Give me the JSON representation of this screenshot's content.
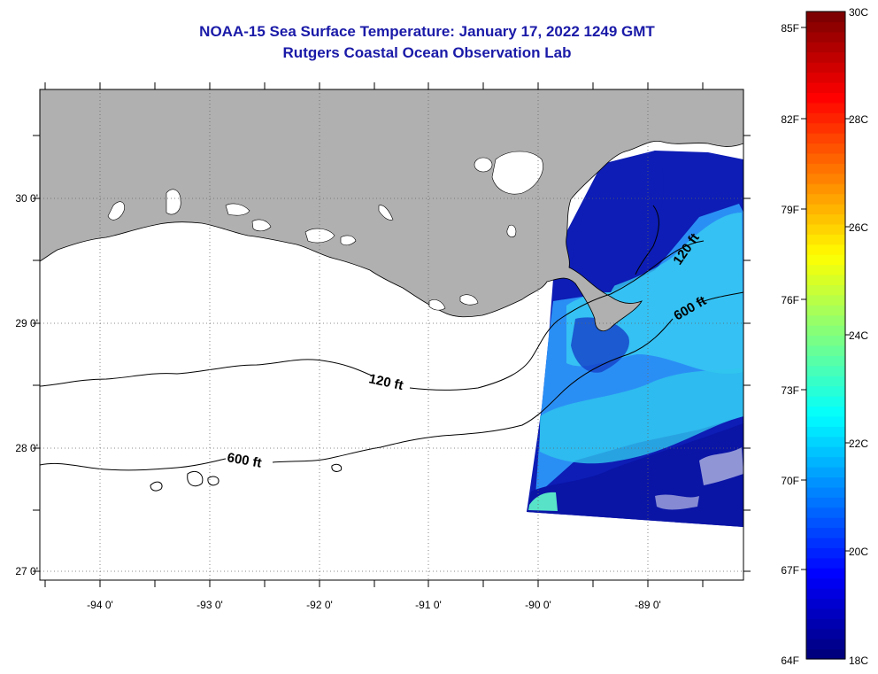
{
  "title": {
    "line1": "NOAA-15 Sea Surface Temperature:  January 17, 2022 1249 GMT",
    "line2": "Rutgers Coastal Ocean Observation Lab"
  },
  "map": {
    "lat_labels": [
      "30 0'",
      "29 0'",
      "28 0'",
      "27 0'"
    ],
    "lon_labels": [
      "-94 0'",
      "-93 0'",
      "-92 0'",
      "-91 0'",
      "-90 0'",
      "-89 0'"
    ],
    "contour_labels": [
      "120 ft",
      "600 ft",
      "120 ft",
      "600 ft"
    ],
    "colors": {
      "land": "#b0b0b0",
      "ocean_no_data": "#ffffff",
      "inland_water": "#ffffff"
    }
  },
  "colorbar": {
    "fahrenheit_labels": [
      "85F",
      "82F",
      "79F",
      "76F",
      "73F",
      "70F",
      "67F",
      "64F"
    ],
    "celsius_labels": [
      "30C",
      "28C",
      "26C",
      "24C",
      "22C",
      "20C",
      "18C"
    ],
    "colormap": [
      "#00007f",
      "#0000ff",
      "#007fff",
      "#00ffff",
      "#7fff7f",
      "#ffff00",
      "#ff7f00",
      "#ff0000",
      "#7f0000"
    ]
  }
}
